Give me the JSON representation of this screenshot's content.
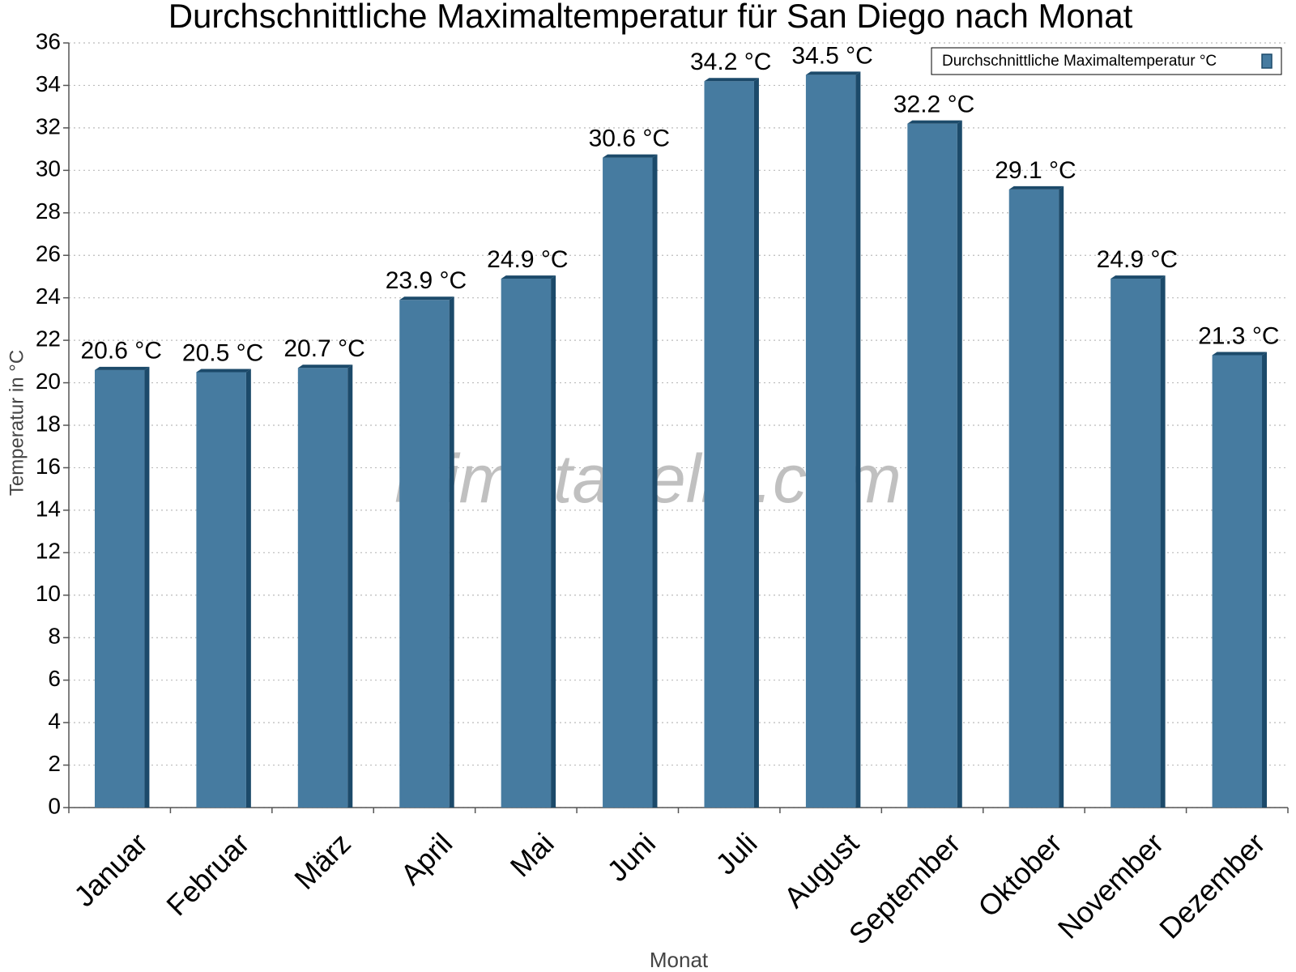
{
  "chart_data": {
    "type": "bar",
    "title": "Durchschnittliche Maximaltemperatur für San Diego nach Monat",
    "watermark": "klimatabelle.com",
    "x_label": "Monat",
    "y_label": "Temperatur in °C",
    "categories": [
      "Januar",
      "Februar",
      "März",
      "April",
      "Mai",
      "Juni",
      "Juli",
      "August",
      "September",
      "Oktober",
      "November",
      "Dezember"
    ],
    "series": [
      {
        "name": "Durchschnittliche Maximaltemperatur °C",
        "color": "#467ba0",
        "values": [
          20.6,
          20.5,
          20.7,
          23.9,
          24.9,
          30.6,
          34.2,
          34.5,
          32.2,
          29.1,
          24.9,
          21.3
        ],
        "value_labels": [
          "20.6 °C",
          "20.5 °C",
          "20.7 °C",
          "23.9 °C",
          "24.9 °C",
          "30.6 °C",
          "34.2 °C",
          "34.5 °C",
          "32.2 °C",
          "29.1 °C",
          "24.9 °C",
          "21.3 °C"
        ]
      }
    ],
    "ylim": [
      0,
      36
    ],
    "yticks": [
      0,
      2,
      4,
      6,
      8,
      10,
      12,
      14,
      16,
      18,
      20,
      22,
      24,
      26,
      28,
      30,
      32,
      34,
      36
    ],
    "grid": true,
    "legend": "top-right"
  }
}
